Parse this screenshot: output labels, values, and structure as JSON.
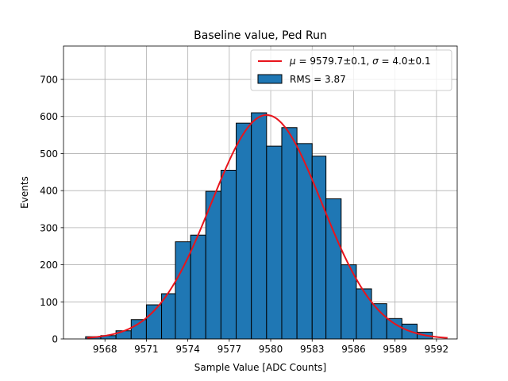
{
  "chart_data": {
    "type": "bar",
    "title": "Baseline value, Ped Run",
    "xlabel": "Sample Value [ADC Counts]",
    "ylabel": "Events",
    "xlim": [
      9565.0,
      9593.5
    ],
    "ylim": [
      0,
      790
    ],
    "xticks": [
      9568,
      9571,
      9574,
      9577,
      9580,
      9583,
      9586,
      9589,
      9592
    ],
    "yticks": [
      0,
      100,
      200,
      300,
      400,
      500,
      600,
      700
    ],
    "grid": true,
    "legend_position": "top-right",
    "histogram": {
      "name": "RMS = 3.87",
      "color": "#1f77b4",
      "bin_edges": [
        9566.6,
        9567.7,
        9568.8,
        9569.9,
        9571.0,
        9572.1,
        9573.1,
        9574.2,
        9575.3,
        9576.4,
        9577.5,
        9578.6,
        9579.7,
        9580.8,
        9581.9,
        9583.0,
        9584.0,
        9585.1,
        9586.2,
        9587.3,
        9588.4,
        9589.5,
        9590.6,
        9591.7
      ],
      "counts": [
        6,
        9,
        22,
        52,
        92,
        122,
        262,
        280,
        398,
        455,
        582,
        610,
        520,
        570,
        527,
        493,
        378,
        200,
        135,
        95,
        55,
        40,
        18
      ]
    },
    "fit": {
      "name": "μ = 9579.7±0.1, σ = 4.0±0.1",
      "mu_label": "μ",
      "sigma_label": "σ",
      "mu_text": "9579.7±0.1",
      "sigma_text": "4.0±0.1",
      "color": "#e8141c",
      "mu": 9579.7,
      "sigma": 4.0,
      "amplitude": 604,
      "x_range": [
        9566.7,
        9592.8
      ]
    }
  }
}
